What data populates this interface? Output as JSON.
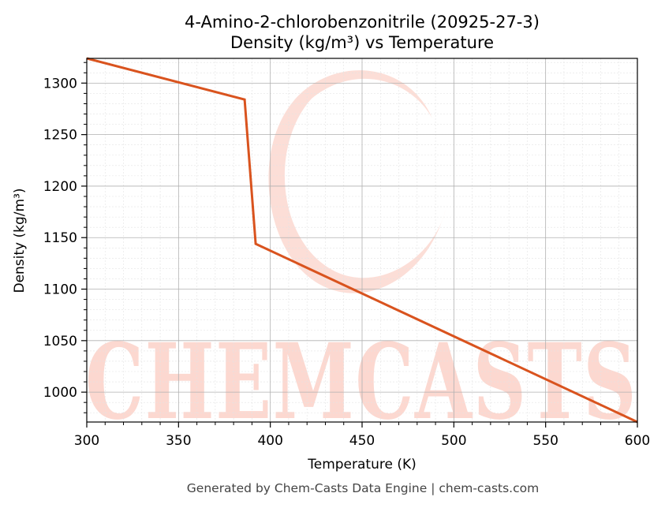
{
  "chart_data": {
    "type": "line",
    "title": "4-Amino-2-chlorobenzonitrile (20925-27-3)",
    "subtitle": "Density (kg/m³) vs Temperature",
    "xlabel": "Temperature (K)",
    "ylabel": "Density (kg/m³)",
    "xlim": [
      300,
      600
    ],
    "ylim": [
      971,
      1324
    ],
    "xticks": [
      300,
      350,
      400,
      450,
      500,
      550,
      600
    ],
    "yticks": [
      1000,
      1050,
      1100,
      1150,
      1200,
      1250,
      1300
    ],
    "grid": true,
    "line_color": "#d9531e",
    "series": [
      {
        "x": [
          300,
          386,
          392,
          600
        ],
        "y": [
          1324,
          1284,
          1144,
          971
        ]
      }
    ]
  },
  "watermark": {
    "text": "CHEMCASTS",
    "color": "#fcd8d0"
  },
  "footer": "Generated by Chem-Casts Data Engine | chem-casts.com"
}
